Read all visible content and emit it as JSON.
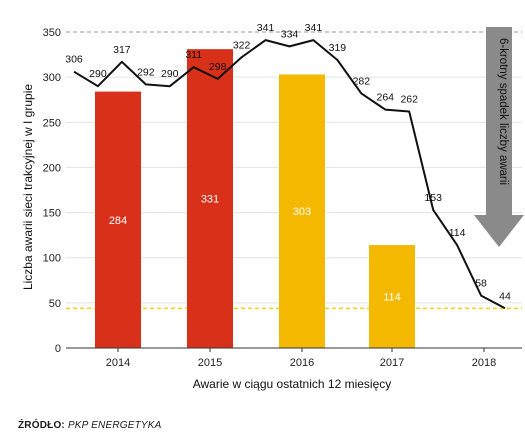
{
  "chart_data": {
    "type": "bar+line",
    "ylabel": "Liczba awarii sieci trakcyjnej w I grupie",
    "xlabel": "Awarie w ciągu ostatnich 12 miesięcy",
    "ylim": [
      0,
      350
    ],
    "yticks": [
      0,
      50,
      100,
      150,
      200,
      250,
      300,
      350
    ],
    "categories": [
      "2014",
      "2015",
      "2016",
      "2017",
      "2018"
    ],
    "bars": {
      "values": [
        284,
        331,
        303,
        114,
        null
      ],
      "colors": [
        "#d9301a",
        "#d9301a",
        "#f5b800",
        "#f5b800",
        null
      ]
    },
    "line": {
      "values": [
        306,
        290,
        317,
        292,
        290,
        311,
        298,
        322,
        341,
        334,
        341,
        319,
        282,
        264,
        262,
        153,
        114,
        58,
        44
      ],
      "color": "#111111"
    },
    "reference_lines": [
      {
        "value": 350,
        "color": "#999999",
        "style": "dashed"
      },
      {
        "value": 44,
        "color": "#f5d400",
        "style": "dashed"
      }
    ],
    "annotation": {
      "text": "6-krotny spadek liczby awarii",
      "arrow_color": "#8a8a8a"
    }
  },
  "source": {
    "label": "ŹRÓDŁO:",
    "value": "PKP ENERGETYKA"
  }
}
